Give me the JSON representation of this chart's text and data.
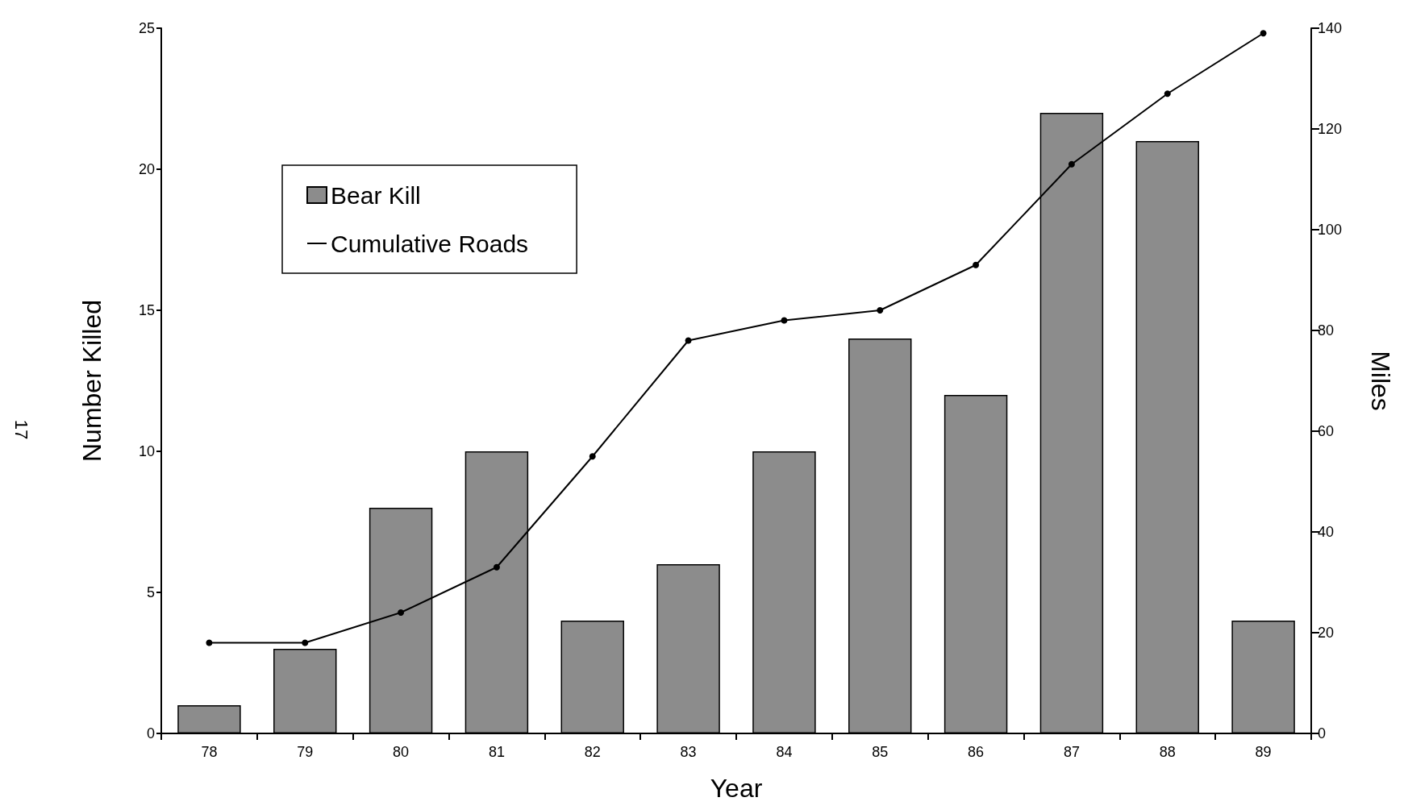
{
  "chart_data": {
    "type": "bar",
    "categories": [
      "78",
      "79",
      "80",
      "81",
      "82",
      "83",
      "84",
      "85",
      "86",
      "87",
      "88",
      "89"
    ],
    "series": [
      {
        "name": "Bear Kill",
        "color": "#8c8c8c",
        "values": [
          1,
          3,
          8,
          10,
          4,
          6,
          10,
          14,
          12,
          22,
          21,
          4
        ]
      },
      {
        "name": "Cumulative Roads",
        "type": "line",
        "axis": "y2",
        "color": "#000000",
        "marker": "circle",
        "line_style": "solid",
        "values": [
          18,
          18,
          24,
          33,
          55,
          78,
          82,
          84,
          93,
          113,
          127,
          139
        ]
      }
    ],
    "xlabel": "Year",
    "ylabel": "Number Killed",
    "y2label": "Miles",
    "ylim": [
      0,
      25
    ],
    "yticks": [
      0,
      5,
      10,
      15,
      20,
      25
    ],
    "y2lim": [
      0,
      140
    ],
    "y2ticks": [
      0,
      20,
      40,
      60,
      80,
      100,
      120,
      140
    ],
    "legend": "top left",
    "grid": false,
    "annotations": [
      "17"
    ]
  }
}
